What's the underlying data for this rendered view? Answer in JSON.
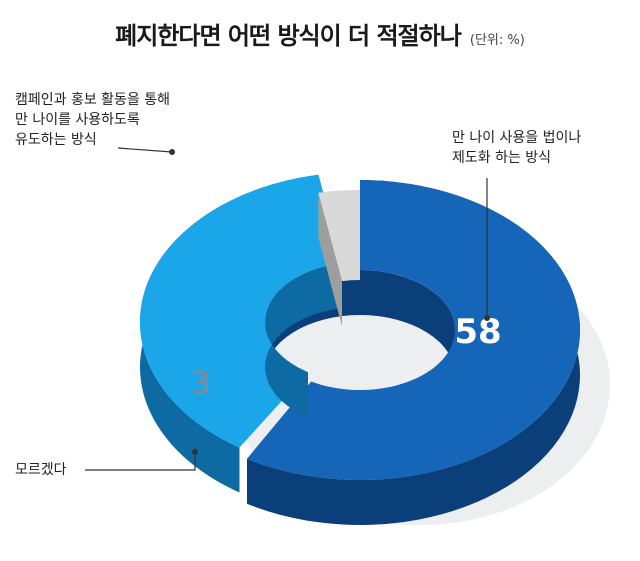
{
  "title": "폐지한다면 어떤 방식이 더 적절하나",
  "unit": "(단위: %)",
  "colors": {
    "law": "#1565b8",
    "law_dark": "#0b3f7a",
    "campaign": "#1aa6e8",
    "campaign_dark": "#0d6aa3",
    "unknown": "#d9d9d9",
    "unknown_dark": "#9e9e9e",
    "shadow": "#eceef0"
  },
  "chart_data": {
    "type": "pie",
    "style": "3d-donut",
    "legend": "none",
    "slices": [
      {
        "key": "law",
        "label": "만 나이 사용을 법이나\n제도화 하는 방식",
        "value": 58
      },
      {
        "key": "campaign",
        "label": "캠페인과 홍보 활동을 통해\n만 나이를 사용하도록\n유도하는 방식",
        "value": 38
      },
      {
        "key": "unknown",
        "label": "모르겠다",
        "value": 3
      }
    ]
  }
}
